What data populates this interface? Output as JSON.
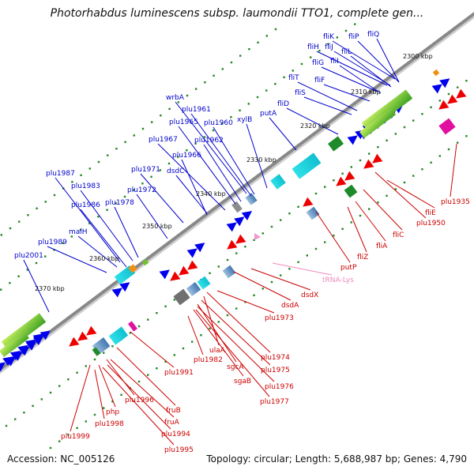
{
  "title": "Photorhabdus luminescens subsp. laumondii TTO1, complete gen...",
  "footer": {
    "accession": "Accession: NC_005126",
    "info": "Topology: circular; Length: 5,688,987 bp; Genes: 4,790"
  },
  "colors": {
    "forward_label": "#0000cc",
    "reverse_label": "#cc0000",
    "trna_label": "#ee88bb",
    "forward_arrow": "#0000ee",
    "reverse_arrow": "#ee0000",
    "backbone": "#888888",
    "tick": "#228822"
  },
  "kbp_marks": [
    "2300 kbp",
    "2310 kbp",
    "2320 kbp",
    "2330 kbp",
    "2340 kbp",
    "2350 kbp",
    "2360 kbp",
    "2370 kbp"
  ],
  "forward_genes": [
    "fliK",
    "fliP",
    "fliQ",
    "fliH",
    "fliJ",
    "fliL",
    "fliG",
    "fliI",
    "fliT",
    "fliF",
    "fliS",
    "fliD",
    "wrbA",
    "plu1961",
    "plu1965",
    "plu1960",
    "xylB",
    "putA",
    "plu1967",
    "plu1962",
    "plu1966",
    "plu1971",
    "dsdC",
    "plu1987",
    "plu1983",
    "plu1972",
    "plu1986",
    "plu1978",
    "malH",
    "plu1989",
    "plu2001"
  ],
  "reverse_genes": [
    "plu1935",
    "fliE",
    "plu1950",
    "fliC",
    "fliA",
    "fliZ",
    "putP",
    "dsdX",
    "dsdA",
    "plu1973",
    "ulaA",
    "plu1974",
    "plu1982",
    "sgcA",
    "plu1975",
    "plu1991",
    "sgaB",
    "plu1976",
    "plu1977",
    "fruB",
    "php",
    "plu1996",
    "fruA",
    "plu1998",
    "plu1994",
    "plu1999",
    "plu1995"
  ],
  "trna_genes": [
    "tRNA-Lys"
  ]
}
